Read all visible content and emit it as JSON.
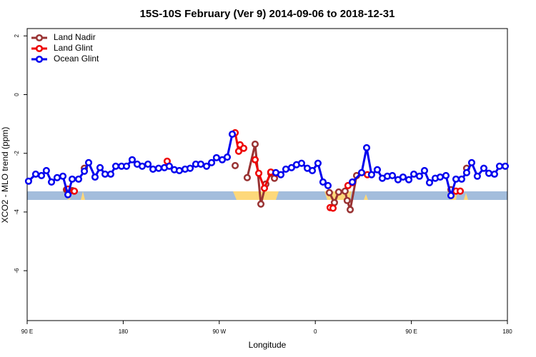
{
  "chart_data": {
    "type": "line",
    "title": "15S-10S February (Ver 9)   2014-09-06 to 2018-12-31",
    "x_label": "Longitude",
    "y_label": "XCO2 - MLO trend (ppm)",
    "xlim": [
      90,
      540
    ],
    "ylim": [
      -7.7,
      2.25
    ],
    "xticks": [
      {
        "value": 90,
        "label": "90 E"
      },
      180,
      {
        "value": 270,
        "label": "90 W"
      },
      {
        "value": 360,
        "label": "0"
      },
      {
        "value": 450,
        "label": "90 E"
      },
      {
        "value": 540,
        "label": "180"
      }
    ],
    "yticks": [
      2,
      0,
      -2,
      -4,
      -6
    ],
    "legend": "top-left",
    "series": [
      {
        "name": "Land Nadir",
        "color": "#993333",
        "x": [
          126.8,
          132.2,
          null,
          143.6,
          null,
          284.9,
          null,
          296.2,
          303.6,
          309,
          313.6,
          318.3,
          321.7,
          null,
          373.2,
          377.9,
          381.9,
          387.9,
          389.9,
          392.7,
          398.7,
          null,
          487.1,
          null,
          501.8
        ],
        "values": [
          -3.24,
          -3.27,
          null,
          -2.51,
          null,
          -2.42,
          null,
          -2.83,
          -1.69,
          -3.73,
          -3.05,
          -2.68,
          -2.85,
          null,
          -3.34,
          -3.68,
          -3.32,
          -3.29,
          -3.61,
          -3.92,
          -2.76,
          null,
          -3.24,
          null,
          -2.51
        ]
      },
      {
        "name": "Land Glint",
        "color": "#ee0000",
        "x": [
          128.2,
          134.2,
          null,
          221.2,
          null,
          284.9,
          288.2,
          289.5,
          292.9,
          null,
          303.6,
          307,
          312.3,
          318.3,
          323,
          null,
          373.9,
          376.6,
          null,
          390.6,
          394.7,
          null,
          408.8,
          null,
          491.8,
          495.8
        ],
        "values": [
          -3.22,
          -3.29,
          null,
          -2.27,
          null,
          -1.3,
          -1.93,
          -1.71,
          -1.83,
          null,
          -2.22,
          -2.68,
          -3.19,
          -2.64,
          -2.68,
          null,
          -3.85,
          -3.87,
          null,
          -3.1,
          -3.0,
          null,
          -2.73,
          null,
          -3.29,
          -3.29
        ]
      },
      {
        "name": "Ocean Glint",
        "color": "#0000ee",
        "x": [
          91.3,
          98,
          103.4,
          108,
          112.8,
          118.1,
          123.5,
          128.2,
          132.2,
          138.2,
          143.6,
          147.6,
          153.6,
          158.3,
          163,
          168.3,
          173,
          178.4,
          183.1,
          188.4,
          193.1,
          197.8,
          203.2,
          207.9,
          213.2,
          218.6,
          223.2,
          227.9,
          232.6,
          238,
          242.7,
          248,
          252.7,
          258.1,
          262.8,
          267.4,
          272.8,
          277.5,
          282.2,
          null,
          323,
          327.7,
          332.4,
          337.7,
          342.4,
          347.1,
          352.5,
          357.2,
          362.5,
          367.2,
          371.9,
          null,
          394.7,
          403.4,
          408.1,
          412.7,
          418.1,
          422.8,
          427.5,
          432.2,
          437.5,
          442.2,
          447.6,
          452.3,
          457.6,
          462.3,
          467,
          472.4,
          477,
          482.4,
          487.1,
          491.8,
          497.1,
          501.8,
          506.5,
          511.8,
          517.9,
          522.6,
          527.9,
          532.6,
          538
        ],
        "values": [
          -2.95,
          -2.71,
          -2.76,
          -2.59,
          -2.98,
          -2.83,
          -2.78,
          -3.41,
          -2.88,
          -2.88,
          -2.61,
          -2.32,
          -2.81,
          -2.49,
          -2.71,
          -2.71,
          -2.44,
          -2.44,
          -2.44,
          -2.22,
          -2.37,
          -2.44,
          -2.37,
          -2.54,
          -2.51,
          -2.49,
          -2.44,
          -2.56,
          -2.59,
          -2.54,
          -2.51,
          -2.37,
          -2.37,
          -2.44,
          -2.32,
          -2.15,
          -2.22,
          -2.13,
          -1.35,
          null,
          -2.66,
          -2.73,
          -2.54,
          -2.49,
          -2.39,
          -2.34,
          -2.51,
          -2.59,
          -2.34,
          -2.98,
          -3.1,
          null,
          -2.98,
          -2.66,
          -1.81,
          -2.73,
          -2.56,
          -2.85,
          -2.78,
          -2.76,
          -2.9,
          -2.81,
          -2.9,
          -2.71,
          -2.78,
          -2.59,
          -3.0,
          -2.85,
          -2.81,
          -2.76,
          -3.44,
          -2.88,
          -2.88,
          -2.66,
          -2.32,
          -2.78,
          -2.51,
          -2.68,
          -2.71,
          -2.44,
          -2.44
        ]
      }
    ]
  }
}
